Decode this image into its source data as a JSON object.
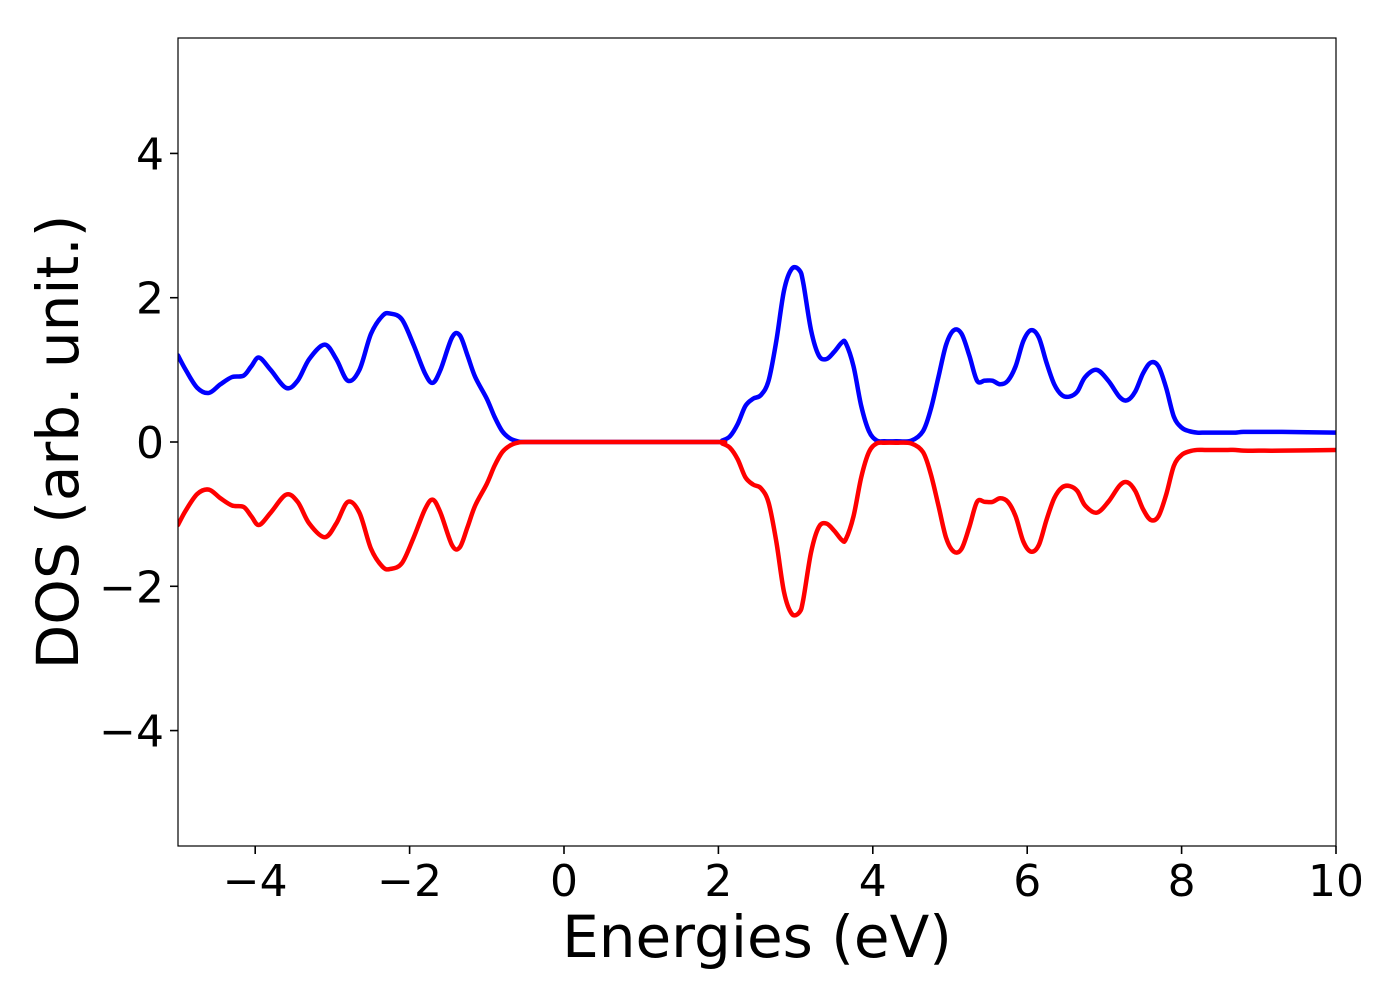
{
  "chart_data": {
    "type": "line",
    "title": "",
    "xlabel": "Energies (eV)",
    "ylabel": "DOS (arb. unit.)",
    "xlim": [
      -5,
      10
    ],
    "ylim": [
      -5.6,
      5.6
    ],
    "x_ticks": [
      {
        "value": -4,
        "label": "−4"
      },
      {
        "value": -2,
        "label": "−2"
      },
      {
        "value": 0,
        "label": "0"
      },
      {
        "value": 2,
        "label": "2"
      },
      {
        "value": 4,
        "label": "4"
      },
      {
        "value": 6,
        "label": "6"
      },
      {
        "value": 8,
        "label": "8"
      },
      {
        "value": 10,
        "label": "10"
      }
    ],
    "y_ticks": [
      {
        "value": 4,
        "label": "4"
      },
      {
        "value": 2,
        "label": "2"
      },
      {
        "value": 0,
        "label": "0"
      },
      {
        "value": -2,
        "label": "−2"
      },
      {
        "value": -4,
        "label": "−4"
      }
    ],
    "grid": false,
    "series": [
      {
        "color": "#0000ff",
        "x": [
          -5,
          -4.9,
          -4.75,
          -4.6,
          -4.45,
          -4.3,
          -4.15,
          -4.05,
          -3.95,
          -3.8,
          -3.6,
          -3.45,
          -3.3,
          -3.1,
          -2.95,
          -2.8,
          -2.65,
          -2.5,
          -2.35,
          -2.25,
          -2.1,
          -1.95,
          -1.8,
          -1.7,
          -1.6,
          -1.45,
          -1.35,
          -1.25,
          -1.15,
          -1.0,
          -0.9,
          -0.8,
          -0.7,
          -0.6,
          -0.5,
          0,
          1,
          2,
          2.05,
          2.15,
          2.25,
          2.35,
          2.45,
          2.55,
          2.65,
          2.75,
          2.85,
          2.95,
          3.05,
          3.1,
          3.2,
          3.3,
          3.4,
          3.5,
          3.6,
          3.65,
          3.75,
          3.85,
          3.95,
          4.05,
          4.15,
          4.3,
          4.5,
          4.65,
          4.75,
          4.85,
          4.95,
          5.05,
          5.15,
          5.25,
          5.35,
          5.45,
          5.55,
          5.65,
          5.75,
          5.85,
          5.95,
          6.05,
          6.15,
          6.25,
          6.35,
          6.45,
          6.55,
          6.65,
          6.75,
          6.9,
          7.05,
          7.2,
          7.3,
          7.4,
          7.5,
          7.6,
          7.7,
          7.8,
          7.9,
          8.0,
          8.1,
          8.2,
          8.3,
          8.4,
          8.5,
          8.6,
          8.7,
          8.8,
          9.0,
          9.3,
          10
        ],
        "y": [
          1.2,
          1.0,
          0.75,
          0.68,
          0.8,
          0.9,
          0.92,
          1.05,
          1.17,
          1.0,
          0.75,
          0.85,
          1.15,
          1.35,
          1.15,
          0.85,
          1.0,
          1.5,
          1.75,
          1.78,
          1.7,
          1.35,
          0.95,
          0.82,
          1.0,
          1.45,
          1.48,
          1.2,
          0.9,
          0.6,
          0.35,
          0.15,
          0.05,
          0.01,
          0.0,
          0.0,
          0.0,
          0.0,
          0.02,
          0.08,
          0.25,
          0.5,
          0.6,
          0.65,
          0.85,
          1.4,
          2.1,
          2.4,
          2.38,
          2.2,
          1.55,
          1.2,
          1.15,
          1.25,
          1.38,
          1.37,
          1.05,
          0.5,
          0.15,
          0.02,
          0.01,
          0.01,
          0.02,
          0.15,
          0.45,
          0.9,
          1.35,
          1.55,
          1.5,
          1.2,
          0.85,
          0.85,
          0.85,
          0.8,
          0.85,
          1.05,
          1.4,
          1.55,
          1.45,
          1.1,
          0.8,
          0.65,
          0.63,
          0.7,
          0.9,
          1.0,
          0.85,
          0.62,
          0.58,
          0.7,
          0.95,
          1.1,
          1.05,
          0.75,
          0.35,
          0.2,
          0.15,
          0.13,
          0.13,
          0.13,
          0.13,
          0.13,
          0.13,
          0.14,
          0.14,
          0.14,
          0.13
        ]
      },
      {
        "color": "#ff0000",
        "x": [
          -5,
          -4.9,
          -4.75,
          -4.6,
          -4.45,
          -4.3,
          -4.15,
          -4.05,
          -3.95,
          -3.8,
          -3.6,
          -3.45,
          -3.3,
          -3.1,
          -2.95,
          -2.8,
          -2.65,
          -2.5,
          -2.35,
          -2.25,
          -2.1,
          -1.95,
          -1.8,
          -1.7,
          -1.6,
          -1.45,
          -1.35,
          -1.25,
          -1.15,
          -1.0,
          -0.9,
          -0.8,
          -0.7,
          -0.6,
          -0.5,
          0,
          1,
          2,
          2.05,
          2.15,
          2.25,
          2.35,
          2.45,
          2.55,
          2.65,
          2.75,
          2.85,
          2.95,
          3.05,
          3.1,
          3.2,
          3.3,
          3.4,
          3.5,
          3.6,
          3.65,
          3.75,
          3.85,
          3.95,
          4.05,
          4.15,
          4.3,
          4.5,
          4.65,
          4.75,
          4.85,
          4.95,
          5.05,
          5.15,
          5.25,
          5.35,
          5.45,
          5.55,
          5.65,
          5.75,
          5.85,
          5.95,
          6.05,
          6.15,
          6.25,
          6.35,
          6.45,
          6.55,
          6.65,
          6.75,
          6.9,
          7.05,
          7.2,
          7.3,
          7.4,
          7.5,
          7.6,
          7.7,
          7.8,
          7.9,
          8.0,
          8.1,
          8.2,
          8.3,
          8.4,
          8.5,
          8.6,
          8.7,
          8.8,
          9.0,
          9.3,
          10
        ],
        "y": [
          -1.15,
          -0.95,
          -0.72,
          -0.66,
          -0.78,
          -0.88,
          -0.9,
          -1.03,
          -1.15,
          -0.98,
          -0.73,
          -0.83,
          -1.13,
          -1.32,
          -1.13,
          -0.83,
          -0.98,
          -1.48,
          -1.73,
          -1.76,
          -1.68,
          -1.33,
          -0.93,
          -0.8,
          -0.98,
          -1.43,
          -1.46,
          -1.18,
          -0.88,
          -0.58,
          -0.33,
          -0.14,
          -0.05,
          -0.01,
          0.0,
          0.0,
          0.0,
          0.0,
          -0.02,
          -0.08,
          -0.24,
          -0.49,
          -0.59,
          -0.64,
          -0.84,
          -1.38,
          -2.08,
          -2.38,
          -2.36,
          -2.18,
          -1.53,
          -1.18,
          -1.13,
          -1.23,
          -1.36,
          -1.35,
          -1.03,
          -0.49,
          -0.14,
          -0.02,
          -0.01,
          -0.01,
          -0.02,
          -0.14,
          -0.44,
          -0.88,
          -1.33,
          -1.52,
          -1.48,
          -1.18,
          -0.83,
          -0.83,
          -0.83,
          -0.78,
          -0.83,
          -1.03,
          -1.38,
          -1.52,
          -1.43,
          -1.08,
          -0.78,
          -0.63,
          -0.61,
          -0.68,
          -0.88,
          -0.98,
          -0.83,
          -0.6,
          -0.56,
          -0.68,
          -0.93,
          -1.08,
          -1.03,
          -0.73,
          -0.33,
          -0.18,
          -0.13,
          -0.11,
          -0.11,
          -0.11,
          -0.11,
          -0.11,
          -0.11,
          -0.12,
          -0.12,
          -0.12,
          -0.11
        ]
      }
    ]
  }
}
